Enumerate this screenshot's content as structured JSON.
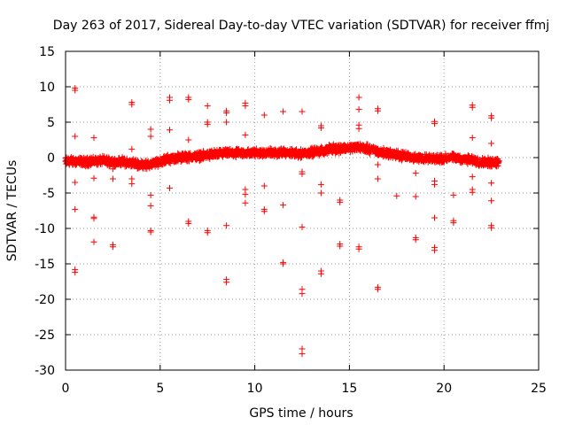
{
  "chart_data": {
    "type": "scatter",
    "title": "Day 263 of 2017, Sidereal Day-to-day VTEC variation (SDTVAR) for receiver ffmj",
    "xlabel": "GPS time / hours",
    "ylabel": "SDTVAR / TECUs",
    "xlim": [
      0,
      25
    ],
    "ylim": [
      -30,
      15
    ],
    "xticks": [
      0,
      5,
      10,
      15,
      20,
      25
    ],
    "xtick_labels": [
      "0",
      "5",
      "10",
      "15",
      "20",
      "25"
    ],
    "yticks": [
      -30,
      -25,
      -20,
      -15,
      -10,
      -5,
      0,
      5,
      10,
      15
    ],
    "ytick_labels": [
      "-30",
      "-25",
      "-20",
      "-15",
      "-10",
      "-5",
      "0",
      "5",
      "10",
      "15"
    ],
    "grid": true,
    "marker": "+",
    "color": "#ff0000",
    "baseline": {
      "x": [
        0.0,
        0.5,
        1.0,
        1.5,
        2.0,
        2.5,
        3.0,
        3.5,
        4.0,
        4.5,
        5.0,
        5.5,
        6.0,
        6.5,
        7.0,
        7.5,
        8.0,
        8.5,
        9.0,
        9.5,
        10.0,
        10.5,
        11.0,
        11.5,
        12.0,
        12.5,
        13.0,
        13.5,
        14.0,
        14.5,
        15.0,
        15.5,
        16.0,
        16.5,
        17.0,
        17.5,
        18.0,
        18.5,
        19.0,
        19.5,
        20.0,
        20.5,
        21.0,
        21.5,
        22.0,
        22.5,
        22.9
      ],
      "y": [
        -0.5,
        -0.5,
        -0.6,
        -0.5,
        -0.4,
        -0.6,
        -0.6,
        -0.8,
        -1.0,
        -1.0,
        -0.5,
        -0.2,
        0.0,
        0.1,
        0.2,
        0.4,
        0.5,
        0.6,
        0.6,
        0.6,
        0.7,
        0.7,
        0.7,
        0.7,
        0.6,
        0.6,
        0.8,
        0.9,
        1.2,
        1.3,
        1.4,
        1.5,
        1.2,
        0.9,
        0.6,
        0.4,
        0.2,
        0.0,
        -0.1,
        -0.2,
        -0.1,
        0.0,
        -0.2,
        -0.4,
        -0.6,
        -0.7,
        -0.5
      ],
      "spread": 0.7
    },
    "outliers": [
      {
        "x": 0.5,
        "y": 9.8
      },
      {
        "x": 0.5,
        "y": 9.5
      },
      {
        "x": 0.5,
        "y": 3.0
      },
      {
        "x": 0.5,
        "y": -3.5
      },
      {
        "x": 0.5,
        "y": -7.3
      },
      {
        "x": 0.5,
        "y": -15.8
      },
      {
        "x": 0.5,
        "y": -16.2
      },
      {
        "x": 1.5,
        "y": 2.8
      },
      {
        "x": 1.5,
        "y": -2.9
      },
      {
        "x": 1.5,
        "y": -8.4
      },
      {
        "x": 1.5,
        "y": -8.6
      },
      {
        "x": 1.5,
        "y": -11.9
      },
      {
        "x": 2.5,
        "y": -1.6
      },
      {
        "x": 2.5,
        "y": -3.0
      },
      {
        "x": 2.5,
        "y": -12.3
      },
      {
        "x": 2.5,
        "y": -12.6
      },
      {
        "x": 3.5,
        "y": 7.8
      },
      {
        "x": 3.5,
        "y": 7.5
      },
      {
        "x": 3.5,
        "y": 1.2
      },
      {
        "x": 3.5,
        "y": -3.0
      },
      {
        "x": 3.5,
        "y": -3.7
      },
      {
        "x": 4.5,
        "y": 4.0
      },
      {
        "x": 4.5,
        "y": 3.0
      },
      {
        "x": 4.5,
        "y": -5.3
      },
      {
        "x": 4.5,
        "y": -6.8
      },
      {
        "x": 4.5,
        "y": -10.3
      },
      {
        "x": 4.5,
        "y": -10.5
      },
      {
        "x": 5.5,
        "y": 8.5
      },
      {
        "x": 5.5,
        "y": 8.1
      },
      {
        "x": 5.5,
        "y": 3.9
      },
      {
        "x": 5.5,
        "y": -4.3
      },
      {
        "x": 6.5,
        "y": 8.5
      },
      {
        "x": 6.5,
        "y": 8.2
      },
      {
        "x": 6.5,
        "y": 2.5
      },
      {
        "x": 6.5,
        "y": -9.0
      },
      {
        "x": 6.5,
        "y": -9.3
      },
      {
        "x": 7.5,
        "y": 7.3
      },
      {
        "x": 7.5,
        "y": 5.0
      },
      {
        "x": 7.5,
        "y": 4.7
      },
      {
        "x": 7.5,
        "y": -10.3
      },
      {
        "x": 7.5,
        "y": -10.6
      },
      {
        "x": 8.5,
        "y": 6.6
      },
      {
        "x": 8.5,
        "y": 6.3
      },
      {
        "x": 8.5,
        "y": 5.0
      },
      {
        "x": 8.5,
        "y": -9.6
      },
      {
        "x": 8.5,
        "y": -17.2
      },
      {
        "x": 8.5,
        "y": -17.6
      },
      {
        "x": 9.5,
        "y": 7.7
      },
      {
        "x": 9.5,
        "y": 7.3
      },
      {
        "x": 9.5,
        "y": 3.2
      },
      {
        "x": 9.5,
        "y": -4.5
      },
      {
        "x": 9.5,
        "y": -5.2
      },
      {
        "x": 9.5,
        "y": -6.4
      },
      {
        "x": 10.5,
        "y": 6.0
      },
      {
        "x": 10.5,
        "y": -4.0
      },
      {
        "x": 10.5,
        "y": -7.3
      },
      {
        "x": 10.5,
        "y": -7.6
      },
      {
        "x": 11.5,
        "y": 6.5
      },
      {
        "x": 11.5,
        "y": -6.7
      },
      {
        "x": 11.5,
        "y": -14.8
      },
      {
        "x": 11.5,
        "y": -15.0
      },
      {
        "x": 12.5,
        "y": 6.5
      },
      {
        "x": 12.5,
        "y": -2.0
      },
      {
        "x": 12.5,
        "y": -2.3
      },
      {
        "x": 12.5,
        "y": -9.8
      },
      {
        "x": 12.5,
        "y": -18.6
      },
      {
        "x": 12.5,
        "y": -19.2
      },
      {
        "x": 12.5,
        "y": -27.0
      },
      {
        "x": 12.5,
        "y": -27.7
      },
      {
        "x": 13.5,
        "y": 4.5
      },
      {
        "x": 13.5,
        "y": 4.2
      },
      {
        "x": 13.5,
        "y": -3.8
      },
      {
        "x": 13.5,
        "y": -5.0
      },
      {
        "x": 13.5,
        "y": -16.0
      },
      {
        "x": 13.5,
        "y": -16.4
      },
      {
        "x": 14.5,
        "y": -6.0
      },
      {
        "x": 14.5,
        "y": -6.3
      },
      {
        "x": 14.5,
        "y": -12.2
      },
      {
        "x": 14.5,
        "y": -12.5
      },
      {
        "x": 15.5,
        "y": 8.5
      },
      {
        "x": 15.5,
        "y": 6.8
      },
      {
        "x": 15.5,
        "y": 4.6
      },
      {
        "x": 15.5,
        "y": 4.1
      },
      {
        "x": 15.5,
        "y": -12.6
      },
      {
        "x": 15.5,
        "y": -12.9
      },
      {
        "x": 16.5,
        "y": 6.9
      },
      {
        "x": 16.5,
        "y": 6.6
      },
      {
        "x": 16.5,
        "y": -1.0
      },
      {
        "x": 16.5,
        "y": -3.0
      },
      {
        "x": 16.5,
        "y": -18.3
      },
      {
        "x": 16.5,
        "y": -18.6
      },
      {
        "x": 17.5,
        "y": -5.4
      },
      {
        "x": 18.5,
        "y": -2.2
      },
      {
        "x": 18.5,
        "y": -5.5
      },
      {
        "x": 18.5,
        "y": -11.3
      },
      {
        "x": 18.5,
        "y": -11.6
      },
      {
        "x": 19.5,
        "y": 5.1
      },
      {
        "x": 19.5,
        "y": 4.8
      },
      {
        "x": 19.5,
        "y": -3.3
      },
      {
        "x": 19.5,
        "y": -3.8
      },
      {
        "x": 19.5,
        "y": -8.5
      },
      {
        "x": 19.5,
        "y": -12.7
      },
      {
        "x": 19.5,
        "y": -13.1
      },
      {
        "x": 20.5,
        "y": -5.3
      },
      {
        "x": 20.5,
        "y": -8.9
      },
      {
        "x": 20.5,
        "y": -9.2
      },
      {
        "x": 21.5,
        "y": 7.4
      },
      {
        "x": 21.5,
        "y": 7.1
      },
      {
        "x": 21.5,
        "y": 2.8
      },
      {
        "x": 21.5,
        "y": -2.7
      },
      {
        "x": 21.5,
        "y": -4.5
      },
      {
        "x": 21.5,
        "y": -4.9
      },
      {
        "x": 22.5,
        "y": 5.9
      },
      {
        "x": 22.5,
        "y": 5.6
      },
      {
        "x": 22.5,
        "y": 2.0
      },
      {
        "x": 22.5,
        "y": -3.6
      },
      {
        "x": 22.5,
        "y": -6.1
      },
      {
        "x": 22.5,
        "y": -9.6
      },
      {
        "x": 22.5,
        "y": -9.9
      }
    ]
  }
}
